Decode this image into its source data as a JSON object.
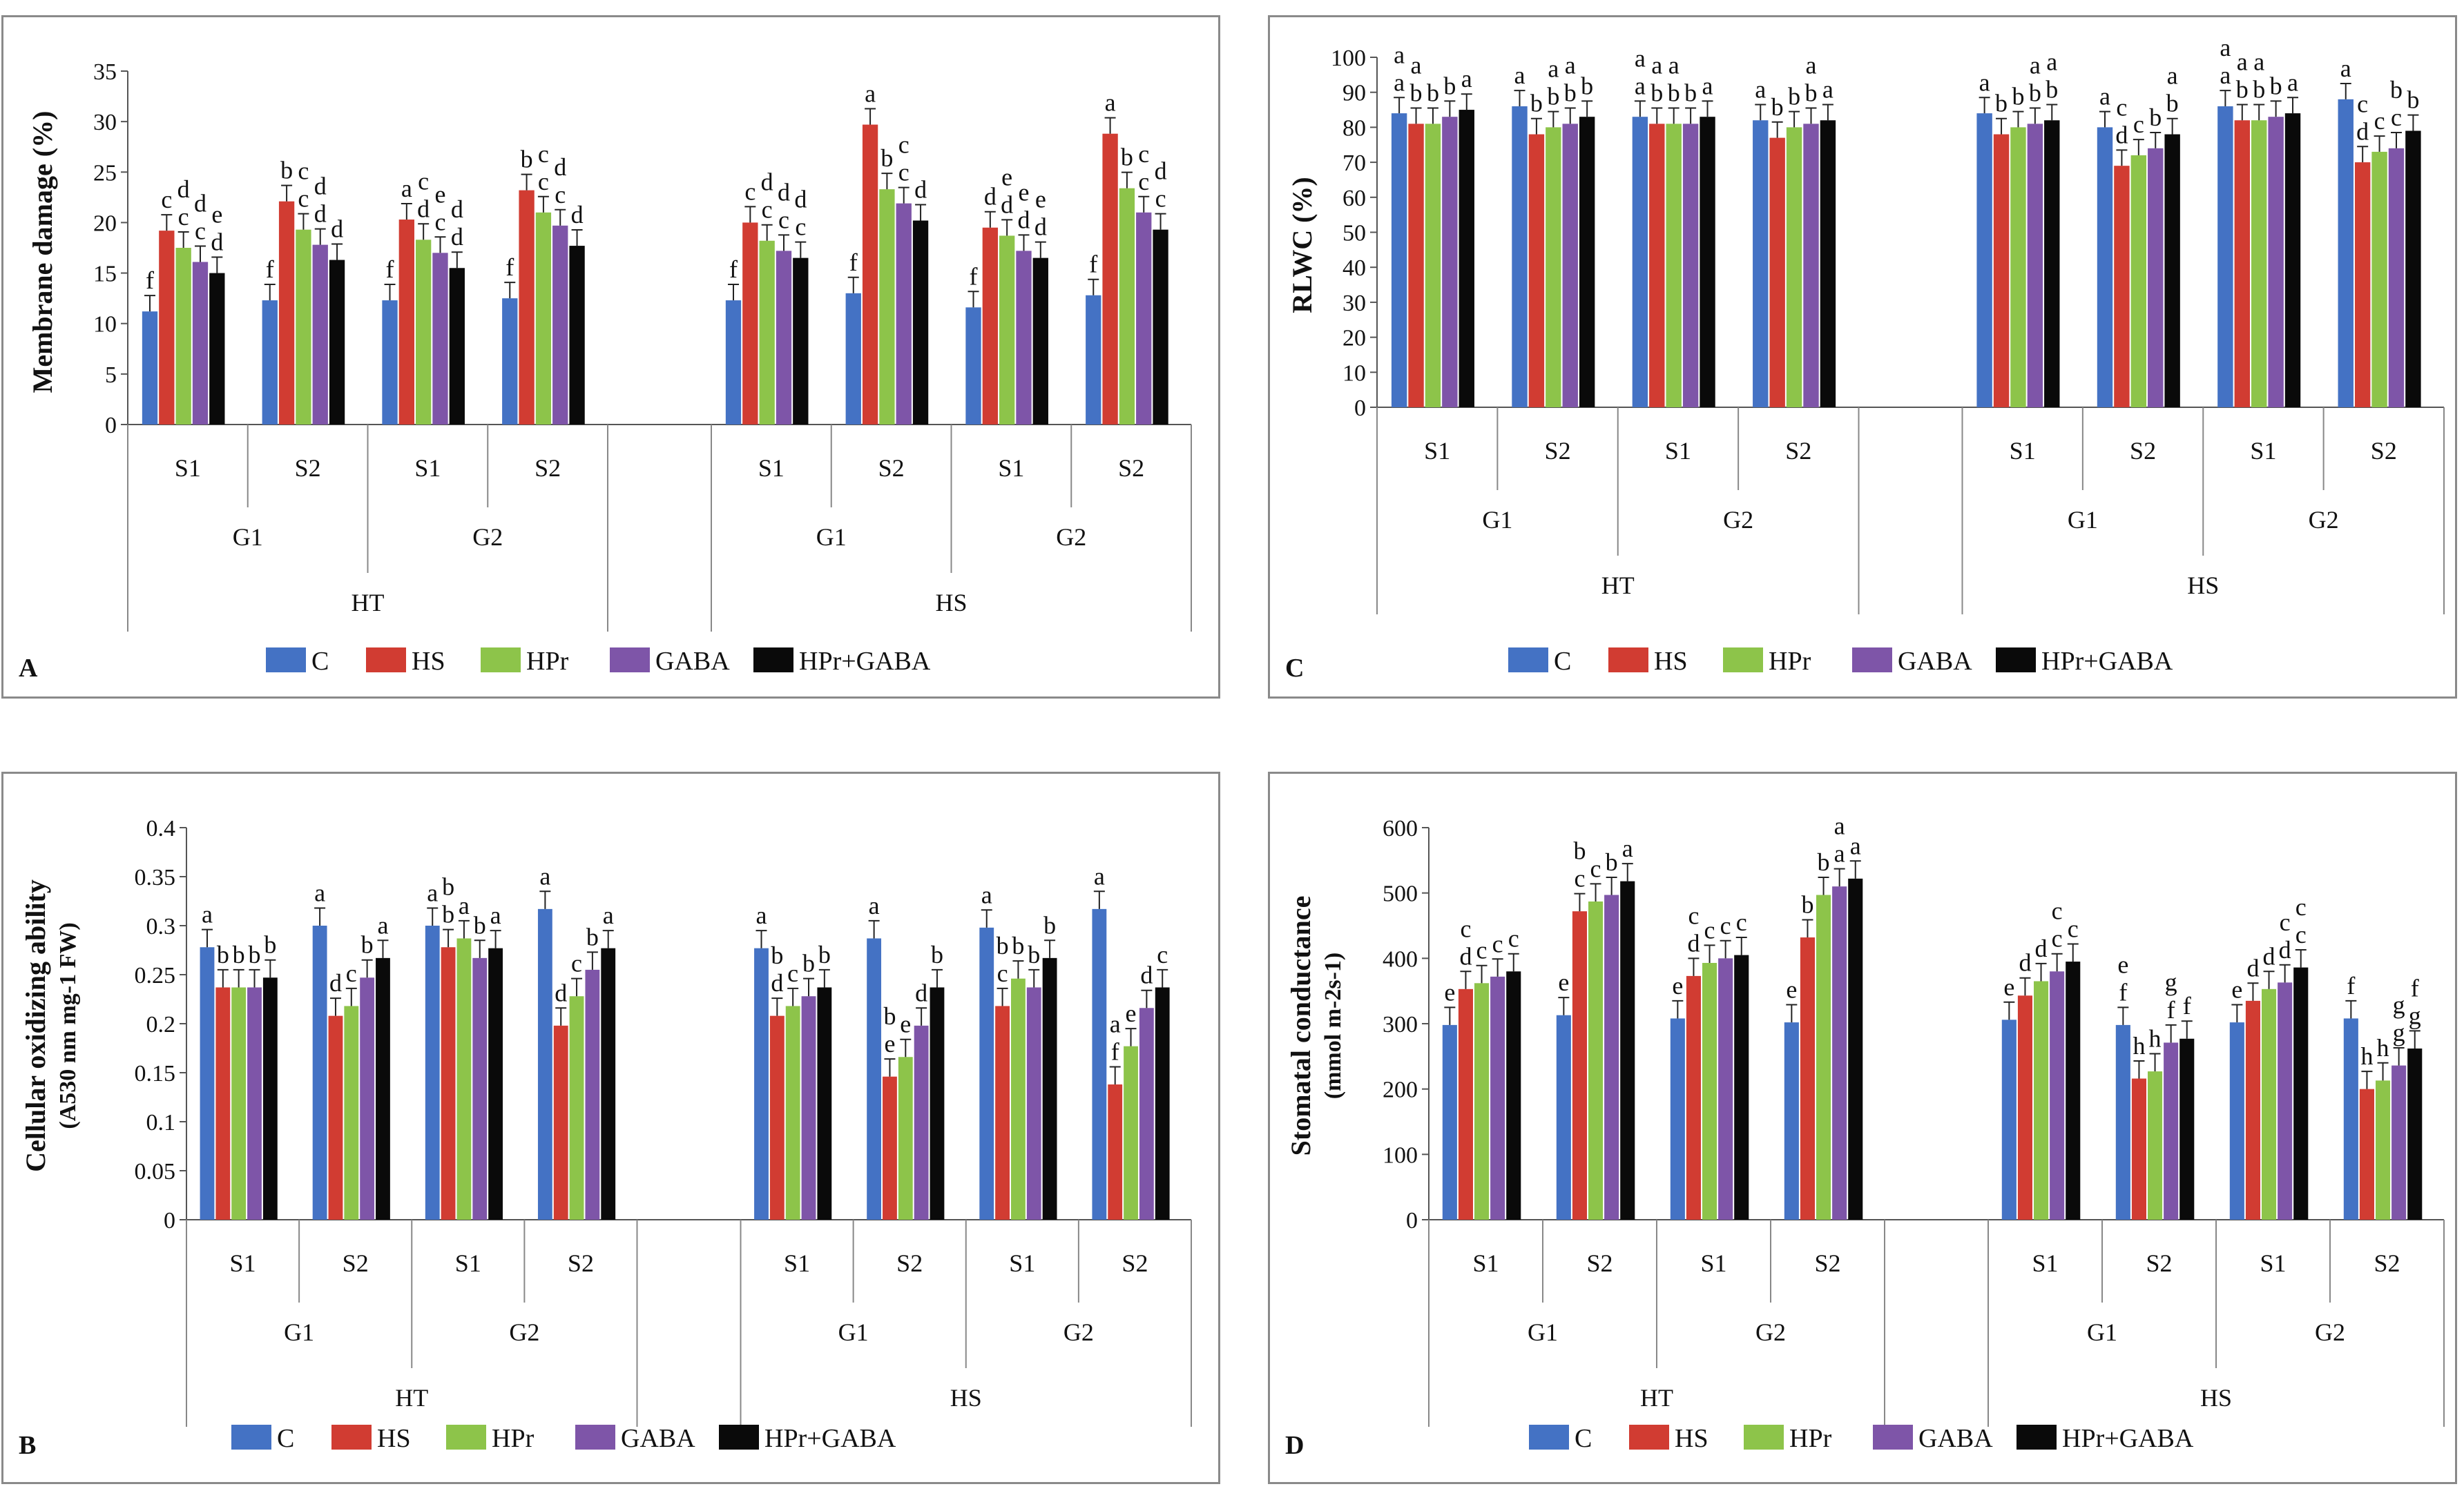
{
  "colors": {
    "C": "#4472C4",
    "HS": "#D13C32",
    "HPr": "#8DC44A",
    "GABA": "#7E55A8",
    "HPr+GABA": "#0a0a0a"
  },
  "legend": [
    "C",
    "HS",
    "HPr",
    "GABA",
    "HPr+GABA"
  ],
  "chart_data": [
    {
      "type": "bar",
      "panel_label": "A",
      "title": "",
      "ylabel": "Membrane damage (%)",
      "ylim": [
        0,
        35
      ],
      "yticks": [
        0,
        5,
        10,
        15,
        20,
        25,
        30,
        35
      ],
      "series_names": [
        "C",
        "HS",
        "HPr",
        "GABA",
        "HPr+GABA"
      ],
      "groups": [
        {
          "temp": "HT",
          "genotype": "G1",
          "stage": "S1",
          "values": [
            11.2,
            19.2,
            17.5,
            16.1,
            15.0
          ],
          "labels": [
            "f",
            "c",
            "c",
            "c",
            "d"
          ]
        },
        {
          "temp": "HT",
          "genotype": "G1",
          "stage": "S2",
          "values": [
            12.3,
            22.1,
            19.3,
            17.8,
            16.3
          ],
          "labels": [
            "f",
            "b",
            "c",
            "d",
            "d"
          ]
        },
        {
          "temp": "HT",
          "genotype": "G2",
          "stage": "S1",
          "values": [
            12.3,
            20.3,
            18.3,
            17.0,
            15.5
          ],
          "labels": [
            "f",
            "a",
            "d",
            "c",
            "d"
          ]
        },
        {
          "temp": "HT",
          "genotype": "G2",
          "stage": "S2",
          "values": [
            12.5,
            23.2,
            21.0,
            19.7,
            17.7
          ],
          "labels": [
            "f",
            "b",
            "c",
            "c",
            "d"
          ]
        },
        {
          "temp": "HS",
          "genotype": "G1",
          "stage": "S1",
          "values": [
            12.3,
            20.0,
            18.2,
            17.2,
            16.5
          ],
          "labels": [
            "f",
            "c",
            "c",
            "c",
            "c"
          ]
        },
        {
          "temp": "HS",
          "genotype": "G1",
          "stage": "S2",
          "values": [
            13.0,
            29.7,
            23.3,
            21.9,
            20.2
          ],
          "labels": [
            "f",
            "a",
            "b",
            "c",
            "d"
          ]
        },
        {
          "temp": "HS",
          "genotype": "G2",
          "stage": "S1",
          "values": [
            11.6,
            19.5,
            18.7,
            17.2,
            16.5
          ],
          "labels": [
            "f",
            "d",
            "d",
            "d",
            "d"
          ]
        },
        {
          "temp": "HS",
          "genotype": "G2",
          "stage": "S2",
          "values": [
            12.8,
            28.8,
            23.4,
            21.0,
            19.3
          ],
          "labels": [
            "f",
            "a",
            "b",
            "c",
            "c"
          ]
        }
      ],
      "x_levels": {
        "stage": [
          "S1",
          "S2",
          "S1",
          "S2",
          "S1",
          "S2",
          "S1",
          "S2"
        ],
        "genotype": [
          "G1",
          "G2",
          "G1",
          "G2"
        ],
        "temp": [
          "HT",
          "HS"
        ]
      }
    },
    {
      "type": "bar",
      "panel_label": "B",
      "title": "",
      "ylabel_line1": "Cellular oxidizing ability",
      "ylabel_line2": "(A530 nm mg-1 FW)",
      "ylim": [
        0,
        0.4
      ],
      "yticks": [
        "0",
        "0.05",
        "0.1",
        "0.15",
        "0.2",
        "0.25",
        "0.3",
        "0.35",
        "0.4"
      ],
      "series_names": [
        "C",
        "HS",
        "HPr",
        "GABA",
        "HPr+GABA"
      ],
      "groups": [
        {
          "temp": "HT",
          "genotype": "G1",
          "stage": "S1",
          "values": [
            0.278,
            0.237,
            0.237,
            0.237,
            0.247
          ],
          "labels": [
            "a",
            "b",
            "b",
            "b",
            "b"
          ]
        },
        {
          "temp": "HT",
          "genotype": "G1",
          "stage": "S2",
          "values": [
            0.3,
            0.208,
            0.218,
            0.247,
            0.267
          ],
          "labels": [
            "a",
            "d",
            "c",
            "b",
            "a"
          ]
        },
        {
          "temp": "HT",
          "genotype": "G2",
          "stage": "S1",
          "values": [
            0.3,
            0.278,
            0.287,
            0.267,
            0.277
          ],
          "labels": [
            "a",
            "b",
            "a",
            "b",
            "a"
          ]
        },
        {
          "temp": "HT",
          "genotype": "G2",
          "stage": "S2",
          "values": [
            0.317,
            0.198,
            0.228,
            0.255,
            0.277
          ],
          "labels": [
            "a",
            "d",
            "c",
            "b",
            "a"
          ]
        },
        {
          "temp": "HS",
          "genotype": "G1",
          "stage": "S1",
          "values": [
            0.277,
            0.208,
            0.218,
            0.228,
            0.237
          ],
          "labels": [
            "a",
            "d",
            "c",
            "b",
            "b"
          ]
        },
        {
          "temp": "HS",
          "genotype": "G1",
          "stage": "S2",
          "values": [
            0.287,
            0.146,
            0.166,
            0.198,
            0.237
          ],
          "labels": [
            "a",
            "e",
            "e",
            "d",
            "b"
          ]
        },
        {
          "temp": "HS",
          "genotype": "G2",
          "stage": "S1",
          "values": [
            0.298,
            0.218,
            0.246,
            0.237,
            0.267
          ],
          "labels": [
            "a",
            "c",
            "b",
            "b",
            "b"
          ]
        },
        {
          "temp": "HS",
          "genotype": "G2",
          "stage": "S2",
          "values": [
            0.317,
            0.138,
            0.177,
            0.216,
            0.237
          ],
          "labels": [
            "a",
            "f",
            "e",
            "d",
            "c"
          ]
        }
      ],
      "x_levels": {
        "stage": [
          "S1",
          "S2",
          "S1",
          "S2",
          "S1",
          "S2",
          "S1",
          "S2"
        ],
        "genotype": [
          "G1",
          "G2",
          "G1",
          "G2"
        ],
        "temp": [
          "HT",
          "HS"
        ]
      }
    },
    {
      "type": "bar",
      "panel_label": "C",
      "title": "",
      "ylabel": "RLWC (%)",
      "ylim": [
        0,
        100
      ],
      "yticks": [
        0,
        10,
        20,
        30,
        40,
        50,
        60,
        70,
        80,
        90,
        100
      ],
      "series_names": [
        "C",
        "HS",
        "HPr",
        "GABA",
        "HPr+GABA"
      ],
      "groups": [
        {
          "temp": "HT",
          "genotype": "G1",
          "stage": "S1",
          "values": [
            84,
            81,
            81,
            83,
            85
          ],
          "labels": [
            "a",
            "b",
            "b",
            "b",
            "a"
          ]
        },
        {
          "temp": "HT",
          "genotype": "G1",
          "stage": "S2",
          "values": [
            86,
            78,
            80,
            81,
            83
          ],
          "labels": [
            "a",
            "b",
            "b",
            "b",
            "b"
          ]
        },
        {
          "temp": "HT",
          "genotype": "G2",
          "stage": "S1",
          "values": [
            83,
            81,
            81,
            81,
            83
          ],
          "labels": [
            "a",
            "b",
            "b",
            "b",
            "a"
          ]
        },
        {
          "temp": "HT",
          "genotype": "G2",
          "stage": "S2",
          "values": [
            82,
            77,
            80,
            81,
            82
          ],
          "labels": [
            "a",
            "b",
            "b",
            "b",
            "a"
          ]
        },
        {
          "temp": "HS",
          "genotype": "G1",
          "stage": "S1",
          "values": [
            84,
            78,
            80,
            81,
            82
          ],
          "labels": [
            "a",
            "b",
            "b",
            "b",
            "b"
          ]
        },
        {
          "temp": "HS",
          "genotype": "G1",
          "stage": "S2",
          "values": [
            80,
            69,
            72,
            74,
            78
          ],
          "labels": [
            "a",
            "d",
            "c",
            "b",
            "b"
          ]
        },
        {
          "temp": "HS",
          "genotype": "G2",
          "stage": "S1",
          "values": [
            86,
            82,
            82,
            83,
            84
          ],
          "labels": [
            "a",
            "b",
            "b",
            "b",
            "a"
          ]
        },
        {
          "temp": "HS",
          "genotype": "G2",
          "stage": "S2",
          "values": [
            88,
            70,
            73,
            74,
            79
          ],
          "labels": [
            "a",
            "d",
            "c",
            "c",
            "b"
          ]
        }
      ],
      "x_levels": {
        "stage": [
          "S1",
          "S2",
          "S1",
          "S2",
          "S1",
          "S2",
          "S1",
          "S2"
        ],
        "genotype": [
          "G1",
          "G2",
          "G1",
          "G2"
        ],
        "temp": [
          "HT",
          "HS"
        ]
      }
    },
    {
      "type": "bar",
      "panel_label": "D",
      "title": "",
      "ylabel_line1": "Stomatal conductance",
      "ylabel_line2": "(mmol m-2s-1)",
      "ylim": [
        0,
        600
      ],
      "yticks": [
        0,
        100,
        200,
        300,
        400,
        500,
        600
      ],
      "series_names": [
        "C",
        "HS",
        "HPr",
        "GABA",
        "HPr+GABA"
      ],
      "groups": [
        {
          "temp": "HT",
          "genotype": "G1",
          "stage": "S1",
          "values": [
            298,
            353,
            362,
            372,
            380
          ],
          "labels": [
            "e",
            "d",
            "c",
            "c",
            "c"
          ]
        },
        {
          "temp": "HT",
          "genotype": "G1",
          "stage": "S2",
          "values": [
            313,
            472,
            487,
            497,
            518
          ],
          "labels": [
            "e",
            "c",
            "c",
            "b",
            "a"
          ]
        },
        {
          "temp": "HT",
          "genotype": "G2",
          "stage": "S1",
          "values": [
            308,
            373,
            393,
            400,
            405
          ],
          "labels": [
            "e",
            "d",
            "c",
            "c",
            "c"
          ]
        },
        {
          "temp": "HT",
          "genotype": "G2",
          "stage": "S2",
          "values": [
            302,
            432,
            497,
            510,
            522
          ],
          "labels": [
            "e",
            "b",
            "b",
            "a",
            "a"
          ]
        },
        {
          "temp": "HS",
          "genotype": "G1",
          "stage": "S1",
          "values": [
            306,
            343,
            365,
            380,
            395
          ],
          "labels": [
            "e",
            "d",
            "d",
            "c",
            "c"
          ]
        },
        {
          "temp": "HS",
          "genotype": "G1",
          "stage": "S2",
          "values": [
            298,
            216,
            227,
            271,
            277
          ],
          "labels": [
            "f",
            "h",
            "h",
            "f",
            "f"
          ]
        },
        {
          "temp": "HS",
          "genotype": "G2",
          "stage": "S1",
          "values": [
            302,
            335,
            353,
            363,
            386
          ],
          "labels": [
            "e",
            "d",
            "d",
            "d",
            "c"
          ]
        },
        {
          "temp": "HS",
          "genotype": "G2",
          "stage": "S2",
          "values": [
            308,
            200,
            213,
            236,
            262
          ],
          "labels": [
            "f",
            "h",
            "h",
            "g",
            "g"
          ]
        }
      ],
      "extra_letters": [
        {
          "group": 0,
          "bar": 1,
          "text": "c"
        },
        {
          "group": 1,
          "bar": 1,
          "text": "b"
        },
        {
          "group": 2,
          "bar": 1,
          "text": "c"
        },
        {
          "group": 3,
          "bar": 3,
          "text": "a"
        },
        {
          "group": 4,
          "bar": 3,
          "text": "c"
        },
        {
          "group": 5,
          "bar": 0,
          "text": "e"
        },
        {
          "group": 5,
          "bar": 3,
          "text": "g"
        },
        {
          "group": 6,
          "bar": 3,
          "text": "c"
        },
        {
          "group": 6,
          "bar": 4,
          "text": "c"
        },
        {
          "group": 7,
          "bar": 3,
          "text": "g"
        },
        {
          "group": 7,
          "bar": 4,
          "text": "f"
        }
      ],
      "x_levels": {
        "stage": [
          "S1",
          "S2",
          "S1",
          "S2",
          "S1",
          "S2",
          "S1",
          "S2"
        ],
        "genotype": [
          "G1",
          "G2",
          "G1",
          "G2"
        ],
        "temp": [
          "HT",
          "HS"
        ]
      }
    }
  ],
  "extra_letters_A": [
    {
      "group": 0,
      "bar": 2,
      "text": "d"
    },
    {
      "group": 0,
      "bar": 3,
      "text": "d"
    },
    {
      "group": 0,
      "bar": 4,
      "text": "e"
    },
    {
      "group": 1,
      "bar": 2,
      "text": "c"
    },
    {
      "group": 1,
      "bar": 3,
      "text": "d"
    },
    {
      "group": 2,
      "bar": 2,
      "text": "c"
    },
    {
      "group": 2,
      "bar": 3,
      "text": "e"
    },
    {
      "group": 2,
      "bar": 4,
      "text": "d"
    },
    {
      "group": 3,
      "bar": 2,
      "text": "c"
    },
    {
      "group": 3,
      "bar": 3,
      "text": "d"
    },
    {
      "group": 4,
      "bar": 2,
      "text": "d"
    },
    {
      "group": 4,
      "bar": 3,
      "text": "d"
    },
    {
      "group": 4,
      "bar": 4,
      "text": "d"
    },
    {
      "group": 5,
      "bar": 3,
      "text": "c"
    },
    {
      "group": 6,
      "bar": 2,
      "text": "e"
    },
    {
      "group": 6,
      "bar": 3,
      "text": "e"
    },
    {
      "group": 6,
      "bar": 4,
      "text": "e"
    },
    {
      "group": 7,
      "bar": 3,
      "text": "c"
    },
    {
      "group": 7,
      "bar": 4,
      "text": "d"
    }
  ],
  "extra_letters_B": [
    {
      "group": 2,
      "bar": 1,
      "text": "b"
    },
    {
      "group": 4,
      "bar": 1,
      "text": "b"
    },
    {
      "group": 5,
      "bar": 1,
      "text": "b"
    },
    {
      "group": 6,
      "bar": 1,
      "text": "b"
    },
    {
      "group": 7,
      "bar": 1,
      "text": "a"
    }
  ],
  "extra_letters_C": [
    {
      "group": 0,
      "bar": 0,
      "text": "a"
    },
    {
      "group": 0,
      "bar": 1,
      "text": "a"
    },
    {
      "group": 1,
      "bar": 2,
      "text": "a"
    },
    {
      "group": 1,
      "bar": 3,
      "text": "a"
    },
    {
      "group": 2,
      "bar": 0,
      "text": "a"
    },
    {
      "group": 2,
      "bar": 1,
      "text": "a"
    },
    {
      "group": 2,
      "bar": 2,
      "text": "a"
    },
    {
      "group": 3,
      "bar": 3,
      "text": "a"
    },
    {
      "group": 4,
      "bar": 3,
      "text": "a"
    },
    {
      "group": 4,
      "bar": 4,
      "text": "a"
    },
    {
      "group": 5,
      "bar": 1,
      "text": "c"
    },
    {
      "group": 5,
      "bar": 4,
      "text": "a"
    },
    {
      "group": 6,
      "bar": 0,
      "text": "a"
    },
    {
      "group": 6,
      "bar": 1,
      "text": "a"
    },
    {
      "group": 6,
      "bar": 2,
      "text": "a"
    },
    {
      "group": 7,
      "bar": 1,
      "text": "c"
    },
    {
      "group": 7,
      "bar": 3,
      "text": "b"
    }
  ]
}
